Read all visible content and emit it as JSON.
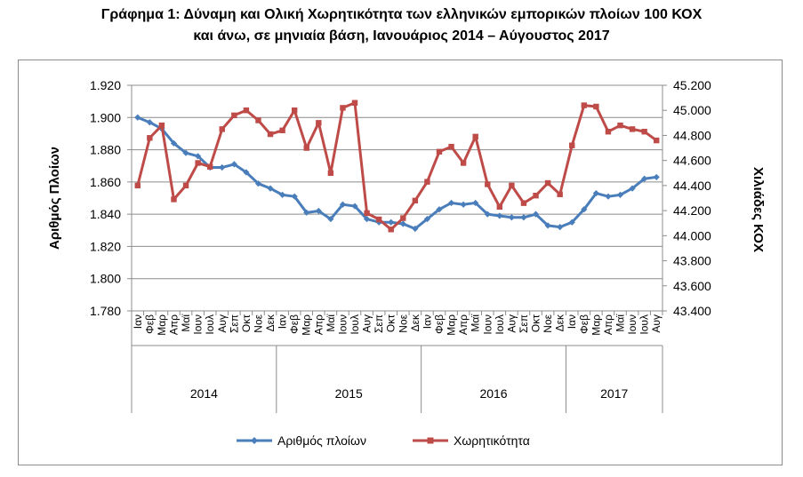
{
  "title_line1": "Γράφημα 1: Δύναμη και Ολική Χωρητικότητα των ελληνικών εμπορικών πλοίων 100 ΚΟΧ",
  "title_line2": "και άνω, σε μηνιαία βάση, Ιανουάριος  2014 – Αύγουστος 2017",
  "chart_data": {
    "type": "line",
    "title": "Γράφημα 1: Δύναμη και Ολική Χωρητικότητα των ελληνικών εμπορικών πλοίων 100 ΚΟΧ και άνω, σε μηνιαία βάση, Ιανουάριος  2014 – Αύγουστος 2017",
    "ylabel": "Αριθμός Πλοίων",
    "y2label": "Χιλιάδες ΚΟΧ",
    "ylim": [
      1780,
      1920
    ],
    "y2lim": [
      43400,
      45200
    ],
    "y_ticks": [
      "1.920",
      "1.900",
      "1.880",
      "1.860",
      "1.840",
      "1.820",
      "1.800",
      "1.780"
    ],
    "y2_ticks": [
      "45.200",
      "45.000",
      "44.800",
      "44.600",
      "44.400",
      "44.200",
      "44.000",
      "43.800",
      "43.600",
      "43.400"
    ],
    "months": [
      "Ιαν",
      "Φεβ",
      "Μαρ",
      "Απρ",
      "Μαϊ",
      "Ιουν",
      "Ιουλ",
      "Αυγ",
      "Σεπ",
      "Οκτ",
      "Νοε",
      "Δεκ",
      "Ιαν",
      "Φεβ",
      "Μαρ",
      "Απρ",
      "Μαϊ",
      "Ιουν",
      "Ιουλ",
      "Αυγ",
      "Σεπ",
      "Οκτ",
      "Νοε",
      "Δεκ",
      "Ιαν",
      "Φεβ",
      "Μαρ",
      "Απρ",
      "Μαϊ",
      "Ιουν",
      "Ιουλ",
      "Αυγ",
      "Σεπ",
      "Οκτ",
      "Νοε",
      "Δεκ",
      "Ιαν",
      "Φεβ",
      "Μαρ",
      "Απρ",
      "Μαϊ",
      "Ιουν",
      "Ιουλ",
      "Αυγ"
    ],
    "years": [
      {
        "label": "2014",
        "months": 12
      },
      {
        "label": "2015",
        "months": 12
      },
      {
        "label": "2016",
        "months": 12
      },
      {
        "label": "2017",
        "months": 8
      }
    ],
    "series": [
      {
        "name": "Αριθμός πλοίων",
        "axis": "left",
        "color": "#4a7ebb",
        "marker": "diamond",
        "values": [
          1900,
          1897,
          1893,
          1884,
          1878,
          1876,
          1869,
          1869,
          1871,
          1866,
          1859,
          1856,
          1852,
          1851,
          1841,
          1842,
          1837,
          1846,
          1845,
          1837,
          1835,
          1835,
          1834,
          1831,
          1837,
          1843,
          1847,
          1846,
          1847,
          1840,
          1839,
          1838,
          1838,
          1840,
          1833,
          1832,
          1835,
          1843,
          1853,
          1851,
          1852,
          1856,
          1862,
          1863
        ]
      },
      {
        "name": "Χωρητικότητα",
        "axis": "right",
        "color": "#be4b48",
        "marker": "square",
        "values": [
          44400,
          44780,
          44880,
          44290,
          44400,
          44580,
          44550,
          44850,
          44960,
          45000,
          44920,
          44810,
          44840,
          45000,
          44700,
          44900,
          44500,
          45020,
          45060,
          44180,
          44130,
          44050,
          44140,
          44280,
          44430,
          44670,
          44710,
          44580,
          44790,
          44410,
          44230,
          44400,
          44260,
          44320,
          44420,
          44330,
          44720,
          45040,
          45030,
          44830,
          44880,
          44850,
          44830,
          44760
        ]
      }
    ],
    "legend_position": "bottom",
    "grid": true
  }
}
